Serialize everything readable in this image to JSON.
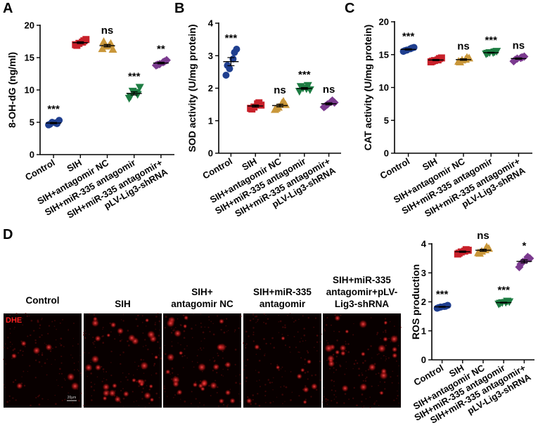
{
  "colors": {
    "Control": "#1f3f8f",
    "SIH": "#c8202a",
    "SIH+antagomir NC": "#c9973a",
    "SIH+miR-335 antagomir": "#1e7d43",
    "SIH+miR-335 antagomir+ pLV-Lig3-shRNA": "#7b3a8f",
    "dhe": "#ff2020"
  },
  "chart_data": [
    {
      "panel": "A",
      "type": "scatter",
      "categories": [
        "Control",
        "SIH",
        "SIH+antagomir NC",
        "SIH+miR-335 antagomir",
        "SIH+miR-335 antagomir+ pLV-Lig3-shRNA"
      ],
      "ylabel": "8-OH-dG (ng/ml)",
      "ylim": [
        0,
        20
      ],
      "yticks": [
        0,
        5,
        10,
        15,
        20
      ],
      "points": [
        [
          4.6,
          4.8,
          5.0,
          5.3,
          4.7,
          4.9
        ],
        [
          17.0,
          17.6,
          17.2,
          17.8,
          16.9,
          17.4
        ],
        [
          16.4,
          17.2,
          16.8,
          16.3,
          17.5,
          16.9
        ],
        [
          8.7,
          9.3,
          9.8,
          10.4,
          9.0,
          9.6
        ],
        [
          13.8,
          14.4,
          14.0,
          14.6,
          13.9,
          14.3
        ]
      ],
      "significance": [
        "***",
        "",
        "ns",
        "***",
        "**"
      ]
    },
    {
      "panel": "B",
      "type": "scatter",
      "categories": [
        "Control",
        "SIH",
        "SIH+antagomir NC",
        "SIH+miR-335 antagomir",
        "SIH+miR-335 antagomir+ pLV-Lig3-shRNA"
      ],
      "ylabel": "SOD activity (U/mg protein)",
      "ylim": [
        0,
        4
      ],
      "yticks": [
        0,
        1,
        2,
        3,
        4
      ],
      "points": [
        [
          2.4,
          3.1,
          2.6,
          3.2,
          2.7,
          2.9
        ],
        [
          1.38,
          1.55,
          1.42,
          1.48,
          1.36,
          1.52
        ],
        [
          1.35,
          1.6,
          1.42,
          1.5,
          1.38,
          1.55
        ],
        [
          1.9,
          2.08,
          2.0,
          1.95,
          2.05,
          1.98
        ],
        [
          1.42,
          1.62,
          1.5,
          1.56,
          1.45,
          1.58
        ]
      ],
      "significance": [
        "***",
        "",
        "ns",
        "***",
        "ns"
      ]
    },
    {
      "panel": "C",
      "type": "scatter",
      "categories": [
        "Control",
        "SIH",
        "SIH+antagomir NC",
        "SIH+miR-335 antagomir",
        "SIH+miR-335 antagomir+ pLV-Lig3-shRNA"
      ],
      "ylabel": "CAT activity (U/mg protein)",
      "ylim": [
        0,
        20
      ],
      "yticks": [
        0,
        5,
        10,
        15,
        20
      ],
      "points": [
        [
          15.5,
          16.0,
          15.7,
          16.1,
          15.6,
          15.9
        ],
        [
          13.9,
          14.4,
          14.1,
          14.5,
          14.0,
          14.2
        ],
        [
          14.0,
          14.6,
          14.2,
          14.5,
          13.9,
          14.3
        ],
        [
          15.1,
          15.4,
          15.3,
          15.5,
          15.2,
          15.3
        ],
        [
          14.0,
          14.6,
          14.4,
          14.7,
          14.2,
          14.5
        ]
      ],
      "significance": [
        "***",
        "",
        "ns",
        "***",
        "ns"
      ]
    },
    {
      "panel": "D",
      "type": "scatter",
      "categories": [
        "Control",
        "SIH",
        "SIH+antagomir NC",
        "SIH+miR-335 antagomir",
        "SIH+miR-335 antagomir+ pLV-Lig3-shRNA"
      ],
      "ylabel": "ROS production",
      "ylim": [
        0,
        4
      ],
      "yticks": [
        0,
        1,
        2,
        3,
        4
      ],
      "points": [
        [
          1.78,
          1.85,
          1.82,
          1.88,
          1.8,
          1.84
        ],
        [
          3.65,
          3.8,
          3.72,
          3.78,
          3.68,
          3.75
        ],
        [
          3.7,
          3.9,
          3.75,
          3.85,
          3.68,
          3.8
        ],
        [
          1.92,
          2.02,
          1.97,
          2.0,
          1.95,
          1.98
        ],
        [
          3.2,
          3.55,
          3.38,
          3.5,
          3.3,
          3.45
        ]
      ],
      "significance": [
        "***",
        "",
        "ns",
        "***",
        "*"
      ]
    }
  ],
  "micrographs": {
    "titles": [
      [
        "Control"
      ],
      [
        "SIH"
      ],
      [
        "SIH+",
        "antagomir NC"
      ],
      [
        "SIH+miR-335",
        "antagomir"
      ],
      [
        "SIH+miR-335",
        "antagomir+pLV-",
        "Lig3-shRNA"
      ]
    ],
    "stain_label": "DHE",
    "scale_bar_label": "20μm"
  }
}
